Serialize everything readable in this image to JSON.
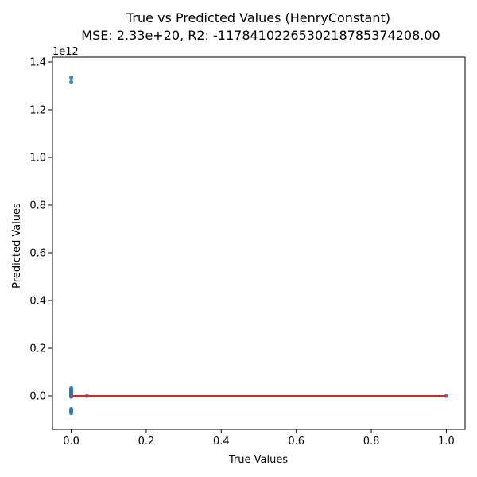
{
  "chart_data": {
    "type": "scatter",
    "title": "True vs Predicted Values (HenryConstant)",
    "subtitle": "MSE: 2.33e+20, R2: -11784102265302187853742​08.00",
    "xlabel": "True Values",
    "ylabel": "Predicted Values",
    "y_offset_label": "1e12",
    "xlim": [
      -0.05,
      1.05
    ],
    "ylim": [
      -0.14,
      1.42
    ],
    "y_scale_factor": 1000000000000,
    "xticks": [
      0.0,
      0.2,
      0.4,
      0.6,
      0.8,
      1.0
    ],
    "xtick_labels": [
      "0.0",
      "0.2",
      "0.4",
      "0.6",
      "0.8",
      "1.0"
    ],
    "yticks": [
      0.0,
      0.2,
      0.4,
      0.6,
      0.8,
      1.0,
      1.2,
      1.4
    ],
    "ytick_labels": [
      "0.0",
      "0.2",
      "0.4",
      "0.6",
      "0.8",
      "1.0",
      "1.2",
      "1.4"
    ],
    "grid": false,
    "legend": "none",
    "colors": {
      "points": "#1f77b4",
      "fit_line": "#d62728"
    },
    "series": [
      {
        "points": [
          [
            0.0,
            1.335
          ],
          [
            0.0,
            1.315
          ],
          [
            0.0,
            0.032
          ],
          [
            0.0,
            0.026
          ],
          [
            0.0,
            0.021
          ],
          [
            0.0,
            0.016
          ],
          [
            0.0,
            0.012
          ],
          [
            0.0,
            0.008
          ],
          [
            0.0,
            0.004
          ],
          [
            0.0,
            0.0
          ],
          [
            0.0,
            -0.004
          ],
          [
            0.0,
            -0.055
          ],
          [
            0.0,
            -0.06
          ],
          [
            0.0,
            -0.065
          ],
          [
            0.0,
            -0.072
          ],
          [
            0.042,
            0.0
          ],
          [
            1.0,
            0.0
          ]
        ]
      }
    ],
    "fit_line": {
      "x": [
        0.0,
        1.0
      ],
      "y": [
        0.0,
        0.0
      ]
    }
  }
}
